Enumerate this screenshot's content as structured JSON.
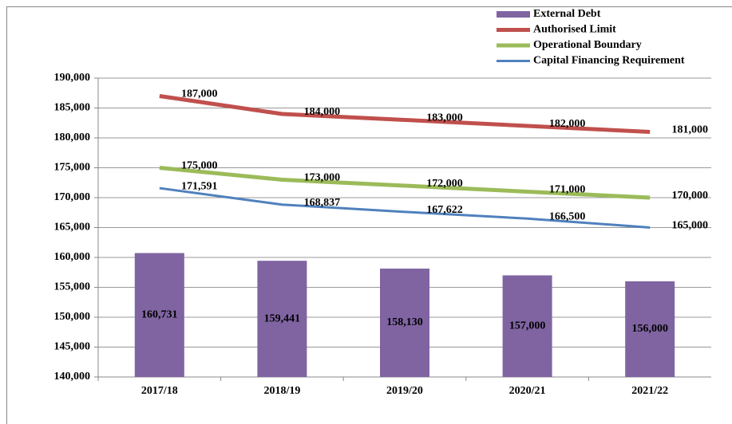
{
  "chart_data": {
    "type": "bar-line",
    "categories": [
      "2017/18",
      "2018/19",
      "2019/20",
      "2020/21",
      "2021/22"
    ],
    "series": [
      {
        "name": "External Debt",
        "type": "bar",
        "color": "#8064a2",
        "values": [
          160731,
          159441,
          158130,
          157000,
          156000
        ],
        "value_labels": [
          "160,731",
          "159,441",
          "158,130",
          "157,000",
          "156,000"
        ]
      },
      {
        "name": "Authorised Limit",
        "type": "line",
        "color": "#c0504d",
        "width": 5,
        "values": [
          187000,
          184000,
          183000,
          182000,
          181000
        ],
        "value_labels": [
          "187,000",
          "184,000",
          "183,000",
          "182,000",
          "181,000"
        ]
      },
      {
        "name": "Operational Boundary",
        "type": "line",
        "color": "#9bbb59",
        "width": 5,
        "values": [
          175000,
          173000,
          172000,
          171000,
          170000
        ],
        "value_labels": [
          "175,000",
          "173,000",
          "172,000",
          "171,000",
          "170,000"
        ]
      },
      {
        "name": "Capital Financing Requirement",
        "type": "line",
        "color": "#4f81bd",
        "width": 3,
        "values": [
          171591,
          168837,
          167622,
          166500,
          165000
        ],
        "value_labels": [
          "171,591",
          "168,837",
          "167,622",
          "166,500",
          "165,000"
        ]
      }
    ],
    "ylim": [
      140000,
      190000
    ],
    "yticks": [
      {
        "value": 140000,
        "label": "140,000"
      },
      {
        "value": 145000,
        "label": "145,000"
      },
      {
        "value": 150000,
        "label": "150,000"
      },
      {
        "value": 155000,
        "label": "155,000"
      },
      {
        "value": 160000,
        "label": "160,000"
      },
      {
        "value": 165000,
        "label": "165,000"
      },
      {
        "value": 170000,
        "label": "170,000"
      },
      {
        "value": 175000,
        "label": "175,000"
      },
      {
        "value": 180000,
        "label": "180,000"
      },
      {
        "value": 185000,
        "label": "185,000"
      },
      {
        "value": 190000,
        "label": "190,000"
      }
    ],
    "grid": true,
    "legend": "top-right"
  }
}
